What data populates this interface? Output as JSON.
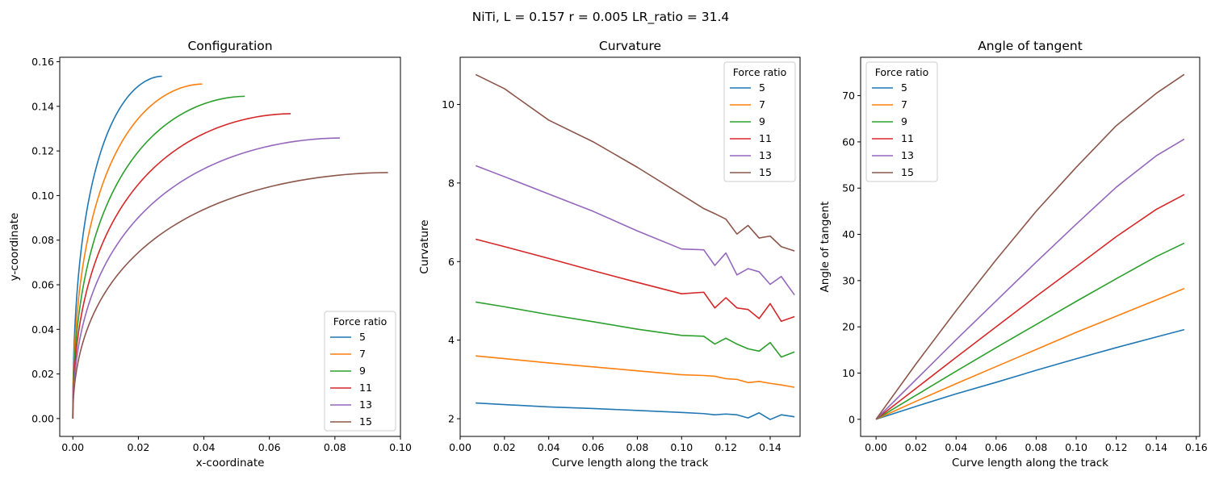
{
  "suptitle": "NiTi, L = 0.157 r = 0.005 LR_ratio = 31.4",
  "legend_title": "Force ratio",
  "series_colors": [
    "#1f77b4",
    "#ff7f0e",
    "#2ca02c",
    "#d62728",
    "#9467bd",
    "#8c564b"
  ],
  "chart_data": [
    {
      "type": "line",
      "title": "Configuration",
      "xlabel": "x-coordinate",
      "ylabel": "y-coordinate",
      "xlim": [
        -0.004,
        0.1
      ],
      "ylim": [
        -0.008,
        0.162
      ],
      "xticks": [
        0.0,
        0.02,
        0.04,
        0.06,
        0.08,
        0.1
      ],
      "xtick_labels": [
        "0.00",
        "0.02",
        "0.04",
        "0.06",
        "0.08",
        "0.10"
      ],
      "yticks": [
        0.0,
        0.02,
        0.04,
        0.06,
        0.08,
        0.1,
        0.12,
        0.14,
        0.16
      ],
      "ytick_labels": [
        "0.00",
        "0.02",
        "0.04",
        "0.06",
        "0.08",
        "0.10",
        "0.12",
        "0.14",
        "0.16"
      ],
      "legend_position": "lower-right",
      "series": [
        {
          "name": "5",
          "x_end": 0.0272,
          "y_end": 0.1535
        },
        {
          "name": "7",
          "x_end": 0.0395,
          "y_end": 0.15
        },
        {
          "name": "9",
          "x_end": 0.0525,
          "y_end": 0.1445
        },
        {
          "name": "11",
          "x_end": 0.0665,
          "y_end": 0.1367
        },
        {
          "name": "13",
          "x_end": 0.0815,
          "y_end": 0.1258
        },
        {
          "name": "15",
          "x_end": 0.0962,
          "y_end": 0.1103
        }
      ]
    },
    {
      "type": "line",
      "title": "Curvature",
      "xlabel": "Curve length along the track",
      "ylabel": "Curvature",
      "xlim": [
        0.0,
        0.1535
      ],
      "ylim": [
        1.55,
        11.2
      ],
      "xticks": [
        0.0,
        0.02,
        0.04,
        0.06,
        0.08,
        0.1,
        0.12,
        0.14
      ],
      "xtick_labels": [
        "0.00",
        "0.02",
        "0.04",
        "0.06",
        "0.08",
        "0.10",
        "0.12",
        "0.14"
      ],
      "yticks": [
        2,
        4,
        6,
        8,
        10
      ],
      "ytick_labels": [
        "2",
        "4",
        "6",
        "8",
        "10"
      ],
      "legend_position": "upper-right",
      "x": [
        0.007,
        0.02,
        0.04,
        0.06,
        0.08,
        0.1,
        0.11,
        0.115,
        0.12,
        0.125,
        0.13,
        0.135,
        0.14,
        0.145,
        0.151
      ],
      "series": [
        {
          "name": "5",
          "values": [
            2.4,
            2.36,
            2.3,
            2.26,
            2.21,
            2.16,
            2.13,
            2.1,
            2.12,
            2.1,
            2.02,
            2.15,
            1.98,
            2.1,
            2.05
          ]
        },
        {
          "name": "7",
          "values": [
            3.6,
            3.53,
            3.42,
            3.32,
            3.22,
            3.12,
            3.1,
            3.08,
            3.02,
            3.0,
            2.92,
            2.95,
            2.9,
            2.86,
            2.8
          ]
        },
        {
          "name": "9",
          "values": [
            4.97,
            4.85,
            4.65,
            4.47,
            4.28,
            4.12,
            4.1,
            3.9,
            4.05,
            3.9,
            3.78,
            3.72,
            3.94,
            3.57,
            3.7
          ]
        },
        {
          "name": "11",
          "values": [
            6.57,
            6.38,
            6.08,
            5.77,
            5.47,
            5.18,
            5.22,
            4.82,
            5.08,
            4.82,
            4.78,
            4.55,
            4.93,
            4.48,
            4.6
          ]
        },
        {
          "name": "13",
          "values": [
            8.44,
            8.16,
            7.72,
            7.28,
            6.78,
            6.32,
            6.3,
            5.9,
            6.22,
            5.66,
            5.82,
            5.74,
            5.42,
            5.62,
            5.15
          ]
        },
        {
          "name": "15",
          "values": [
            10.76,
            10.4,
            9.6,
            9.05,
            8.4,
            7.7,
            7.35,
            7.22,
            7.08,
            6.7,
            6.92,
            6.6,
            6.65,
            6.38,
            6.27
          ]
        }
      ]
    },
    {
      "type": "line",
      "title": "Angle of tangent",
      "xlabel": "Curve length along the track",
      "ylabel": "Angle of tangent",
      "xlim": [
        -0.0077,
        0.1617
      ],
      "ylim": [
        -3.7,
        78.3
      ],
      "xticks": [
        0.0,
        0.02,
        0.04,
        0.06,
        0.08,
        0.1,
        0.12,
        0.14,
        0.16
      ],
      "xtick_labels": [
        "0.00",
        "0.02",
        "0.04",
        "0.06",
        "0.08",
        "0.10",
        "0.12",
        "0.14",
        "0.16"
      ],
      "yticks": [
        0,
        10,
        20,
        30,
        40,
        50,
        60,
        70
      ],
      "ytick_labels": [
        "0",
        "10",
        "20",
        "30",
        "40",
        "50",
        "60",
        "70"
      ],
      "legend_position": "upper-left",
      "x": [
        0.0,
        0.02,
        0.04,
        0.06,
        0.08,
        0.1,
        0.12,
        0.14,
        0.154
      ],
      "series": [
        {
          "name": "5",
          "values": [
            0,
            2.8,
            5.5,
            8.0,
            10.6,
            13.1,
            15.5,
            17.8,
            19.4
          ]
        },
        {
          "name": "7",
          "values": [
            0,
            3.9,
            7.7,
            11.4,
            15.1,
            18.8,
            22.3,
            25.8,
            28.3
          ]
        },
        {
          "name": "9",
          "values": [
            0,
            5.2,
            10.4,
            15.5,
            20.5,
            25.5,
            30.4,
            35.2,
            38.1
          ]
        },
        {
          "name": "11",
          "values": [
            0,
            6.7,
            13.4,
            20.0,
            26.6,
            33.0,
            39.5,
            45.4,
            48.6
          ]
        },
        {
          "name": "13",
          "values": [
            0,
            8.6,
            17.2,
            25.6,
            34.0,
            42.2,
            50.2,
            57.0,
            60.6
          ]
        },
        {
          "name": "15",
          "values": [
            0,
            12.0,
            23.5,
            34.5,
            45.0,
            54.5,
            63.5,
            70.5,
            74.6
          ]
        }
      ]
    }
  ]
}
